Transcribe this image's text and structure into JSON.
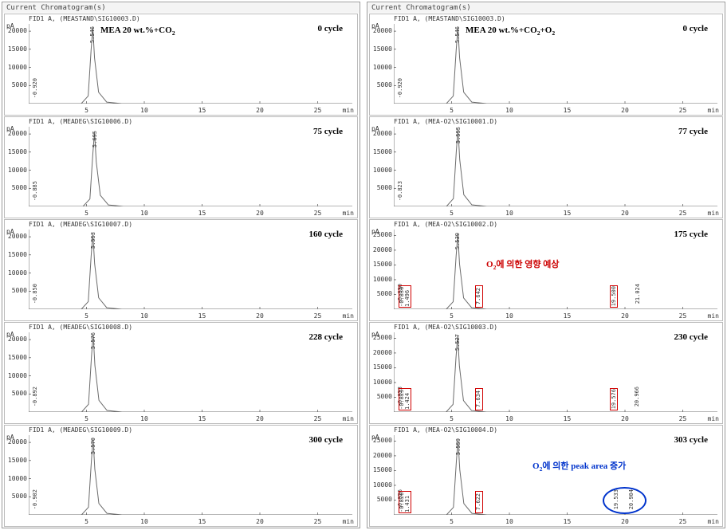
{
  "col_header_left": "Current Chromatogram(s)",
  "col_header_right": "Current Chromatogram(s)",
  "left_title": "MEA 20 wt.%+CO₂",
  "right_title": "MEA 20 wt.%+CO₂+O₂",
  "ytick_step": 5000,
  "y_axis_label": "pA",
  "x_ticks": [
    5,
    10,
    15,
    20,
    25
  ],
  "x_unit": "min",
  "xlim": [
    0,
    28
  ],
  "red_annotation_text": "O₂에 의한 영향 예상",
  "blue_annotation_text": "O₂에 의한 peak area 증가",
  "colors": {
    "line": "#6b6b6b",
    "red_box": "#d00000",
    "red_text": "#cc0000",
    "blue": "#0033cc",
    "bg": "#ffffff",
    "border": "#bbbbbb"
  },
  "left_panels": [
    {
      "cycle": "0 cycle",
      "file": "FID1 A,  (MEASTAND\\SIG10003.D)",
      "ymax": 22000,
      "peak_rt": 5.546,
      "baseline_rt": -0.92,
      "peak_height": 21000
    },
    {
      "cycle": "75 cycle",
      "file": "FID1 A,  (MEADEG\\SIG10006.D)",
      "ymax": 22000,
      "peak_rt": 5.695,
      "baseline_rt": -0.885,
      "peak_height": 20500
    },
    {
      "cycle": "160 cycle",
      "file": "FID1 A,  (MEADEG\\SIG10007.D)",
      "ymax": 22000,
      "peak_rt": 5.553,
      "baseline_rt": -0.85,
      "peak_height": 21000
    },
    {
      "cycle": "228 cycle",
      "file": "FID1 A,  (MEADEG\\SIG10008.D)",
      "ymax": 22000,
      "peak_rt": 5.576,
      "baseline_rt": -0.892,
      "peak_height": 21500
    },
    {
      "cycle": "300 cycle",
      "file": "FID1 A,  (MEADEG\\SIG10009.D)",
      "ymax": 22000,
      "peak_rt": 5.57,
      "baseline_rt": -0.902,
      "peak_height": 21000
    }
  ],
  "right_panels": [
    {
      "cycle": "0 cycle",
      "file": "FID1 A,  (MEASTAND\\SIG10003.D)",
      "ymax": 22000,
      "peak_rt": 5.546,
      "baseline_rt": -0.92,
      "peak_height": 21000
    },
    {
      "cycle": "77 cycle",
      "file": "FID1 A,  (MEA-O2\\SIG10001.D)",
      "ymax": 22000,
      "peak_rt": 5.555,
      "baseline_rt": -0.823,
      "peak_height": 21500
    },
    {
      "cycle": "175 cycle",
      "file": "FID1 A,  (MEA-O2\\SIG10002.D)",
      "ymax": 27000,
      "peak_rt": 5.539,
      "baseline_rt": -0.83,
      "peak_height": 25500,
      "red_boxes": [
        {
          "x": 0.9,
          "label": "-0.830\n1.496"
        },
        {
          "x": 7.5,
          "label": "7.642"
        },
        {
          "x": 19.2,
          "label": "19.500"
        }
      ],
      "extra_peak_rt": 21.024,
      "red_annotation": true
    },
    {
      "cycle": "230 cycle",
      "file": "FID1 A,  (MEA-O2\\SIG10003.D)",
      "ymax": 27000,
      "peak_rt": 5.527,
      "baseline_rt": -0.823,
      "peak_height": 26000,
      "red_boxes": [
        {
          "x": 0.9,
          "label": "-0.823\n1.424"
        },
        {
          "x": 7.5,
          "label": "7.634"
        },
        {
          "x": 19.2,
          "label": "19.576"
        }
      ],
      "extra_peak_rt": 20.966
    },
    {
      "cycle": "303 cycle",
      "file": "FID1 A,  (MEA-O2\\SIG10004.D)",
      "ymax": 27000,
      "peak_rt": 5.559,
      "baseline_rt": -0.826,
      "peak_height": 25500,
      "red_boxes": [
        {
          "x": 0.9,
          "label": "-0.826\n1.431"
        },
        {
          "x": 7.5,
          "label": "7.622"
        }
      ],
      "blue_ellipse_peaks": [
        {
          "x": 19.2,
          "label": "19.533"
        },
        {
          "x": 20.5,
          "label": "20.904"
        }
      ],
      "blue_annotation": true
    }
  ]
}
